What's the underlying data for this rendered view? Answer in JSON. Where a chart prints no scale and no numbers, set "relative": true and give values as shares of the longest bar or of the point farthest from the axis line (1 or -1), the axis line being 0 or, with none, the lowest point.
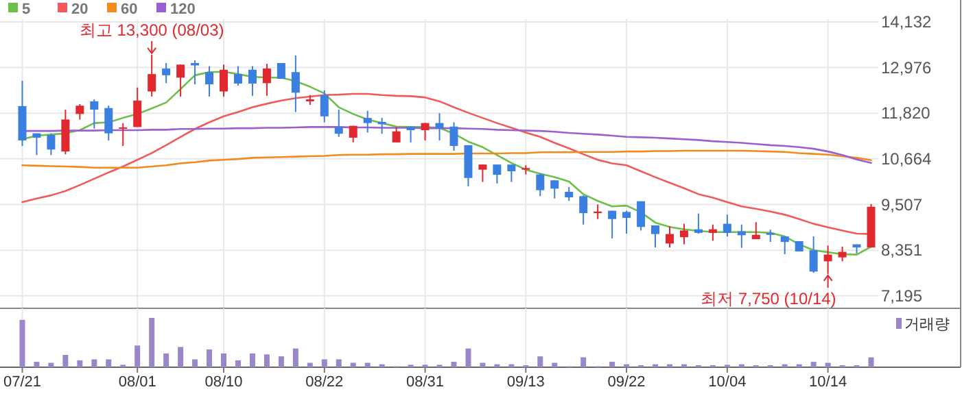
{
  "chart_data": [
    {
      "type": "candlestick",
      "categories": [
        null,
        null,
        null,
        null,
        null,
        null,
        null,
        null,
        null,
        null,
        null,
        null,
        null,
        null,
        null,
        null,
        null,
        null,
        null,
        null,
        null,
        null,
        null,
        null,
        null,
        null,
        null,
        null,
        null,
        null,
        null,
        null,
        null,
        null,
        null,
        null,
        null,
        null,
        null,
        null,
        null,
        null,
        null,
        null,
        null,
        null,
        null,
        null,
        null,
        null,
        null,
        null,
        null,
        null,
        null,
        null,
        null,
        null,
        null,
        null
      ],
      "ohlc": [
        [
          12000,
          12640,
          10990,
          11130
        ],
        [
          11310,
          11310,
          10760,
          11200
        ],
        [
          11270,
          11310,
          10760,
          10900
        ],
        [
          10850,
          11910,
          10780,
          11660
        ],
        [
          11800,
          12050,
          11660,
          12010
        ],
        [
          12120,
          12170,
          11430,
          11910
        ],
        [
          11950,
          12010,
          11130,
          11310
        ],
        [
          11430,
          11570,
          10990,
          11460
        ],
        [
          11470,
          12470,
          11470,
          12140
        ],
        [
          12370,
          13300,
          12240,
          12810
        ],
        [
          12950,
          13090,
          12580,
          12780
        ],
        [
          12720,
          13050,
          12240,
          13050
        ],
        [
          13090,
          13160,
          12550,
          13030
        ],
        [
          12860,
          13010,
          12240,
          12550
        ],
        [
          12370,
          13050,
          12240,
          12920
        ],
        [
          12810,
          13010,
          12520,
          12570
        ],
        [
          12920,
          13010,
          12260,
          12570
        ],
        [
          12580,
          13070,
          12260,
          12950
        ],
        [
          13090,
          13090,
          12690,
          12690
        ],
        [
          12860,
          13280,
          11850,
          12340
        ],
        [
          12120,
          12280,
          12030,
          12170
        ],
        [
          12280,
          12400,
          11590,
          11740
        ],
        [
          11470,
          11910,
          11220,
          11300
        ],
        [
          11200,
          11500,
          11080,
          11500
        ],
        [
          11700,
          11880,
          11330,
          11570
        ],
        [
          11600,
          11700,
          11300,
          11540
        ],
        [
          11080,
          11470,
          11080,
          11360
        ],
        [
          11480,
          11480,
          11080,
          11390
        ],
        [
          11390,
          11570,
          11130,
          11570
        ],
        [
          11570,
          11820,
          11130,
          11430
        ],
        [
          11480,
          11590,
          10870,
          10990
        ],
        [
          11010,
          11010,
          9970,
          10180
        ],
        [
          10390,
          10520,
          10080,
          10520
        ],
        [
          10520,
          10520,
          10040,
          10260
        ],
        [
          10520,
          10520,
          10080,
          10350
        ],
        [
          10390,
          10500,
          10270,
          10430
        ],
        [
          10270,
          10290,
          9720,
          9870
        ],
        [
          10120,
          10120,
          9660,
          9910
        ],
        [
          9830,
          9950,
          9600,
          9690
        ],
        [
          9720,
          9740,
          9000,
          9290
        ],
        [
          9290,
          9510,
          9140,
          9330
        ],
        [
          9350,
          9350,
          8650,
          9140
        ],
        [
          9320,
          9350,
          8770,
          9170
        ],
        [
          9590,
          9590,
          8850,
          8940
        ],
        [
          8980,
          8980,
          8420,
          8760
        ],
        [
          8520,
          8960,
          8420,
          8760
        ],
        [
          8680,
          9020,
          8500,
          8850
        ],
        [
          8880,
          9280,
          8770,
          8790
        ],
        [
          8790,
          9000,
          8590,
          8880
        ],
        [
          9020,
          9250,
          8700,
          8790
        ],
        [
          8830,
          9000,
          8410,
          8730
        ],
        [
          8630,
          9060,
          8630,
          8740
        ],
        [
          8790,
          8870,
          8560,
          8740
        ],
        [
          8700,
          8700,
          8250,
          8560
        ],
        [
          8580,
          8580,
          8320,
          8320
        ],
        [
          8350,
          8700,
          7780,
          7810
        ],
        [
          8070,
          8470,
          7750,
          8240
        ],
        [
          8170,
          8440,
          8070,
          8310
        ],
        [
          8500,
          8500,
          8270,
          8420
        ],
        [
          8420,
          9520,
          8420,
          9450
        ]
      ],
      "colors": [
        "#3b7fe0",
        "#3b7fe0",
        "#3b7fe0",
        "#e0282e",
        "#e0282e",
        "#3b7fe0",
        "#3b7fe0",
        "#e0282e",
        "#e0282e",
        "#e0282e",
        "#3b7fe0",
        "#e0282e",
        "#3b7fe0",
        "#3b7fe0",
        "#e0282e",
        "#3b7fe0",
        "#3b7fe0",
        "#e0282e",
        "#3b7fe0",
        "#3b7fe0",
        "#e0282e",
        "#3b7fe0",
        "#3b7fe0",
        "#e0282e",
        "#3b7fe0",
        "#3b7fe0",
        "#e0282e",
        "#3b7fe0",
        "#e0282e",
        "#3b7fe0",
        "#3b7fe0",
        "#3b7fe0",
        "#e0282e",
        "#3b7fe0",
        "#3b7fe0",
        "#e0282e",
        "#3b7fe0",
        "#3b7fe0",
        "#3b7fe0",
        "#3b7fe0",
        "#e0282e",
        "#3b7fe0",
        "#3b7fe0",
        "#3b7fe0",
        "#3b7fe0",
        "#e0282e",
        "#e0282e",
        "#3b7fe0",
        "#e0282e",
        "#3b7fe0",
        "#3b7fe0",
        "#e0282e",
        "#3b7fe0",
        "#3b7fe0",
        "#3b7fe0",
        "#3b7fe0",
        "#e0282e",
        "#e0282e",
        "#3b7fe0",
        "#e0282e"
      ],
      "series": [
        {
          "name": "5",
          "type": "line",
          "color": "#6cc04a",
          "values": [
            11160,
            11250,
            11280,
            11310,
            11390,
            11570,
            11590,
            11700,
            11800,
            11940,
            12090,
            12430,
            12780,
            12860,
            12870,
            12810,
            12740,
            12720,
            12720,
            12630,
            12490,
            12320,
            11970,
            11800,
            11660,
            11570,
            11480,
            11470,
            11470,
            11450,
            11300,
            11100,
            10960,
            10760,
            10560,
            10390,
            10290,
            10200,
            10090,
            9770,
            9600,
            9460,
            9480,
            9310,
            9050,
            8940,
            8880,
            8840,
            8810,
            8810,
            8810,
            8810,
            8790,
            8700,
            8500,
            8350,
            8300,
            8250,
            8240,
            8440
          ]
        },
        {
          "name": "20",
          "type": "line",
          "color": "#f05a5a",
          "values": [
            9570,
            9660,
            9740,
            9850,
            10000,
            10160,
            10320,
            10470,
            10640,
            10810,
            11010,
            11220,
            11420,
            11590,
            11740,
            11850,
            11970,
            12060,
            12140,
            12200,
            12240,
            12280,
            12290,
            12310,
            12310,
            12280,
            12260,
            12250,
            12220,
            12120,
            11970,
            11830,
            11700,
            11570,
            11450,
            11330,
            11220,
            11070,
            10930,
            10780,
            10640,
            10550,
            10500,
            10350,
            10200,
            10060,
            9920,
            9770,
            9680,
            9570,
            9460,
            9400,
            9330,
            9250,
            9140,
            9020,
            8930,
            8850,
            8770,
            8760
          ]
        },
        {
          "name": "60",
          "type": "line",
          "color": "#f28b1c",
          "values": [
            10500,
            10490,
            10480,
            10470,
            10460,
            10440,
            10440,
            10440,
            10440,
            10470,
            10500,
            10550,
            10580,
            10620,
            10640,
            10660,
            10690,
            10700,
            10710,
            10720,
            10730,
            10740,
            10760,
            10770,
            10770,
            10780,
            10780,
            10790,
            10790,
            10790,
            10790,
            10800,
            10800,
            10800,
            10810,
            10810,
            10830,
            10830,
            10830,
            10840,
            10840,
            10840,
            10850,
            10850,
            10860,
            10860,
            10870,
            10870,
            10870,
            10870,
            10870,
            10860,
            10850,
            10840,
            10810,
            10790,
            10770,
            10730,
            10690,
            10630
          ]
        },
        {
          "name": "120",
          "type": "line",
          "color": "#9b5fcf",
          "values": [
            11370,
            11370,
            11370,
            11380,
            11380,
            11380,
            11390,
            11390,
            11390,
            11400,
            11400,
            11420,
            11420,
            11430,
            11430,
            11440,
            11440,
            11450,
            11450,
            11460,
            11470,
            11470,
            11470,
            11460,
            11460,
            11450,
            11450,
            11450,
            11440,
            11440,
            11440,
            11430,
            11420,
            11400,
            11390,
            11380,
            11370,
            11350,
            11320,
            11300,
            11280,
            11250,
            11220,
            11210,
            11200,
            11180,
            11160,
            11140,
            11110,
            11090,
            11070,
            11040,
            11010,
            10990,
            10960,
            10920,
            10850,
            10760,
            10650,
            10560
          ]
        }
      ],
      "ylim": [
        6880,
        14200
      ],
      "yticks": [
        {
          "value": 7195,
          "label": "7,195"
        },
        {
          "value": 8351,
          "label": "8,351"
        },
        {
          "value": 9507,
          "label": "9,507"
        },
        {
          "value": 10664,
          "label": "10,664"
        },
        {
          "value": 11820,
          "label": "11,820"
        },
        {
          "value": 12976,
          "label": "12,976"
        },
        {
          "value": 14132,
          "label": "14,132"
        }
      ],
      "grid": true,
      "legend": "top left",
      "tick_labels": "y",
      "annotations": [
        "최고 13,300 (08/03)",
        "최저 7,750 (10/14)"
      ]
    },
    {
      "type": "bar",
      "relative": true,
      "categories": [
        "07/21",
        null,
        null,
        null,
        null,
        null,
        null,
        null,
        "08/01",
        null,
        null,
        null,
        null,
        null,
        "08/10",
        null,
        null,
        null,
        null,
        null,
        null,
        "08/22",
        null,
        null,
        null,
        null,
        null,
        null,
        "08/31",
        null,
        null,
        null,
        null,
        null,
        null,
        "09/13",
        null,
        null,
        null,
        null,
        null,
        null,
        "09/22",
        null,
        null,
        null,
        null,
        null,
        null,
        "10/04",
        null,
        null,
        null,
        null,
        null,
        null,
        "10/14",
        null,
        null,
        null
      ],
      "series": [
        {
          "name": "거래량",
          "color": "#9b86c9",
          "values": [
            0.96,
            0.11,
            0.09,
            0.25,
            0.14,
            0.16,
            0.16,
            0.05,
            0.44,
            1,
            0.28,
            0.41,
            0.16,
            0.36,
            0.28,
            0.14,
            0.28,
            0.26,
            0.22,
            0.38,
            0.09,
            0.16,
            0.16,
            0.09,
            0.09,
            0.06,
            0.02,
            0.05,
            0.05,
            0.05,
            0.11,
            0.38,
            0.09,
            0.06,
            0.06,
            0.04,
            0.22,
            0.09,
            0.02,
            0.2,
            0.02,
            0.11,
            0.06,
            0.04,
            0.06,
            0.06,
            0.06,
            0.04,
            0.04,
            0.05,
            0.06,
            0.04,
            0.04,
            0.06,
            0.06,
            0.11,
            0.09,
            0.04,
            0.04,
            0.2
          ]
        }
      ],
      "grid": true,
      "legend": "top right",
      "tick_labels": "x"
    }
  ]
}
